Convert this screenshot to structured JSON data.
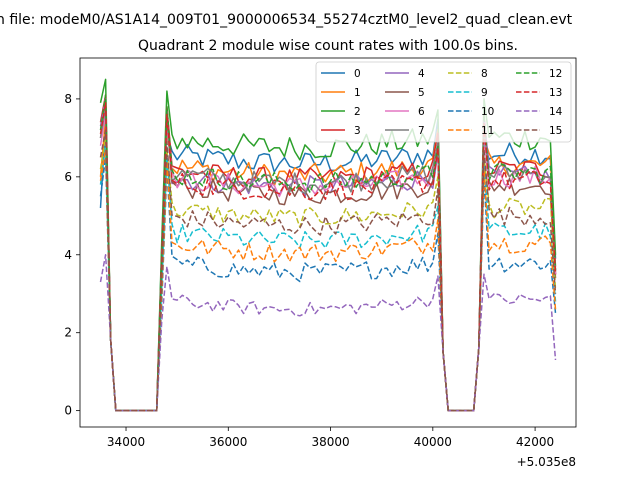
{
  "chart_data": {
    "type": "line",
    "suptitle": "n file: modeM0/AS1A14_009T01_9000006534_55274cztM0_level2_quad_clean.evt",
    "title": "Quadrant 2 module wise count rates with 100.0s bins.",
    "xlabel": "",
    "ylabel": "",
    "x_offset_label": "+5.035e8",
    "xlim": [
      33100,
      42800
    ],
    "ylim": [
      -0.42,
      9.05
    ],
    "xticks": [
      34000,
      36000,
      38000,
      40000,
      42000
    ],
    "xtick_labels": [
      "34000",
      "36000",
      "38000",
      "40000",
      "42000"
    ],
    "yticks": [
      0,
      2,
      4,
      6,
      8
    ],
    "ytick_labels": [
      "0",
      "2",
      "4",
      "6",
      "8"
    ],
    "grid": false,
    "legend_position": "top-right",
    "time_segments": [
      {
        "start": 33500,
        "end": 33700
      },
      {
        "start": 34700,
        "end": 40100
      },
      {
        "start": 40900,
        "end": 42400
      }
    ],
    "series": [
      {
        "name": "0",
        "color": "#1f77b4",
        "dashed": false,
        "level": 6.6,
        "start": 5.2,
        "peak": 7.4,
        "edge": 3.9,
        "noise": 0.3
      },
      {
        "name": "1",
        "color": "#ff7f0e",
        "dashed": false,
        "level": 6.3,
        "start": 6.0,
        "peak": 7.5,
        "edge": 3.5,
        "noise": 0.3
      },
      {
        "name": "2",
        "color": "#2ca02c",
        "dashed": false,
        "level": 7.0,
        "start": 7.9,
        "peak": 8.5,
        "edge": 4.0,
        "noise": 0.32
      },
      {
        "name": "3",
        "color": "#d62728",
        "dashed": false,
        "level": 6.2,
        "start": 7.4,
        "peak": 8.1,
        "edge": 3.7,
        "noise": 0.28
      },
      {
        "name": "4",
        "color": "#9467bd",
        "dashed": false,
        "level": 6.0,
        "start": 7.3,
        "peak": 8.0,
        "edge": 3.5,
        "noise": 0.28
      },
      {
        "name": "5",
        "color": "#8c564b",
        "dashed": false,
        "level": 5.8,
        "start": 7.0,
        "peak": 7.8,
        "edge": 3.4,
        "noise": 0.28
      },
      {
        "name": "6",
        "color": "#e377c2",
        "dashed": false,
        "level": 6.0,
        "start": 6.8,
        "peak": 7.6,
        "edge": 3.5,
        "noise": 0.28
      },
      {
        "name": "7",
        "color": "#7f7f7f",
        "dashed": false,
        "level": 6.1,
        "start": 7.0,
        "peak": 7.8,
        "edge": 3.6,
        "noise": 0.28
      },
      {
        "name": "8",
        "color": "#bcbd22",
        "dashed": true,
        "level": 5.2,
        "start": 6.2,
        "peak": 7.0,
        "edge": 3.1,
        "noise": 0.25
      },
      {
        "name": "9",
        "color": "#17becf",
        "dashed": true,
        "level": 4.6,
        "start": 5.8,
        "peak": 6.8,
        "edge": 2.8,
        "noise": 0.25
      },
      {
        "name": "10",
        "color": "#1f77b4",
        "dashed": true,
        "level": 3.8,
        "start": 5.5,
        "peak": 6.5,
        "edge": 2.5,
        "noise": 0.25
      },
      {
        "name": "11",
        "color": "#ff7f0e",
        "dashed": true,
        "level": 4.3,
        "start": 5.9,
        "peak": 6.7,
        "edge": 2.6,
        "noise": 0.25
      },
      {
        "name": "12",
        "color": "#2ca02c",
        "dashed": true,
        "level": 6.1,
        "start": 7.2,
        "peak": 8.1,
        "edge": 3.6,
        "noise": 0.28
      },
      {
        "name": "13",
        "color": "#d62728",
        "dashed": true,
        "level": 5.9,
        "start": 7.1,
        "peak": 7.9,
        "edge": 3.5,
        "noise": 0.28
      },
      {
        "name": "14",
        "color": "#9467bd",
        "dashed": true,
        "level": 2.85,
        "start": 3.3,
        "peak": 4.0,
        "edge": 1.3,
        "noise": 0.18
      },
      {
        "name": "15",
        "color": "#8c564b",
        "dashed": true,
        "level": 5.0,
        "start": 6.5,
        "peak": 7.2,
        "edge": 3.0,
        "noise": 0.25
      }
    ]
  }
}
